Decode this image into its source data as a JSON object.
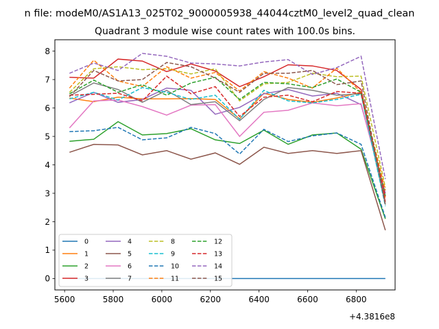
{
  "chart_data": {
    "type": "line",
    "suptitle": "n file: modeM0/AS1A13_025T02_9000005938_44044cztM0_level2_quad_clean",
    "title": "Quadrant 3 module wise count rates with 100.0s bins.",
    "xlabel": "",
    "ylabel": "",
    "x_offset_label": "+4.3816e8",
    "xlim": [
      5560,
      6960
    ],
    "ylim": [
      -0.4,
      8.4
    ],
    "x_ticks": [
      5600,
      5800,
      6000,
      6200,
      6400,
      6600,
      6800
    ],
    "y_ticks": [
      0,
      1,
      2,
      3,
      4,
      5,
      6,
      7,
      8
    ],
    "grid": false,
    "legend_position": "lower-left",
    "x": [
      5620,
      5720,
      5820,
      5920,
      6020,
      6120,
      6220,
      6320,
      6420,
      6520,
      6620,
      6720,
      6820,
      6920
    ],
    "series": [
      {
        "name": "0",
        "color": "#1f77b4",
        "dash": "solid",
        "values": [
          0,
          0,
          0,
          0,
          0,
          0,
          0,
          0,
          0,
          0,
          0,
          0,
          0,
          0
        ]
      },
      {
        "name": "1",
        "color": "#ff7f0e",
        "dash": "solid",
        "values": [
          6.35,
          6.22,
          6.38,
          6.32,
          6.32,
          6.33,
          6.3,
          5.62,
          6.52,
          6.3,
          6.2,
          6.35,
          6.55,
          2.85
        ]
      },
      {
        "name": "2",
        "color": "#2ca02c",
        "dash": "solid",
        "values": [
          4.83,
          4.9,
          5.52,
          5.05,
          5.1,
          5.27,
          4.88,
          4.75,
          5.22,
          4.72,
          5.05,
          5.12,
          4.55,
          2.1
        ]
      },
      {
        "name": "3",
        "color": "#d62728",
        "dash": "solid",
        "values": [
          7.08,
          7.05,
          7.72,
          7.65,
          7.28,
          7.55,
          7.3,
          6.75,
          7.1,
          7.52,
          7.48,
          7.32,
          6.65,
          2.7
        ]
      },
      {
        "name": "4",
        "color": "#9467bd",
        "dash": "solid",
        "values": [
          6.18,
          6.55,
          6.2,
          6.3,
          6.7,
          6.62,
          5.78,
          6.02,
          6.5,
          6.65,
          6.42,
          6.52,
          6.12,
          3.0
        ]
      },
      {
        "name": "5",
        "color": "#8c564b",
        "dash": "solid",
        "values": [
          4.44,
          4.72,
          4.7,
          4.35,
          4.5,
          4.2,
          4.42,
          4.02,
          4.62,
          4.4,
          4.5,
          4.4,
          4.5,
          1.7
        ]
      },
      {
        "name": "6",
        "color": "#e377c2",
        "dash": "solid",
        "values": [
          5.3,
          6.25,
          6.28,
          6.05,
          5.75,
          6.1,
          6.12,
          5.0,
          5.85,
          5.92,
          6.18,
          6.08,
          6.15,
          2.9
        ]
      },
      {
        "name": "7",
        "color": "#7f7f7f",
        "dash": "solid",
        "values": [
          6.42,
          6.88,
          6.65,
          6.2,
          6.62,
          6.12,
          6.22,
          5.55,
          6.3,
          6.72,
          6.62,
          6.45,
          6.5,
          2.6
        ]
      },
      {
        "name": "8",
        "color": "#bcbd22",
        "dash": "dashed",
        "values": [
          6.55,
          7.38,
          7.45,
          7.35,
          7.38,
          7.2,
          7.38,
          6.25,
          6.85,
          6.9,
          7.22,
          7.1,
          7.12,
          3.2
        ]
      },
      {
        "name": "9",
        "color": "#17becf",
        "dash": "dashed",
        "values": [
          6.32,
          6.55,
          6.28,
          6.72,
          6.55,
          6.3,
          6.45,
          5.6,
          6.62,
          6.25,
          6.18,
          6.3,
          6.48,
          2.55
        ]
      },
      {
        "name": "10",
        "color": "#1f77b4",
        "dash": "dashed",
        "values": [
          5.17,
          5.2,
          5.32,
          4.88,
          4.95,
          5.32,
          5.1,
          4.38,
          5.25,
          4.82,
          5.02,
          5.12,
          4.72,
          2.15
        ]
      },
      {
        "name": "11",
        "color": "#ff7f0e",
        "dash": "dashed",
        "values": [
          6.7,
          7.68,
          6.95,
          6.75,
          7.45,
          7.05,
          7.25,
          6.6,
          7.28,
          7.05,
          6.7,
          7.4,
          6.55,
          3.1
        ]
      },
      {
        "name": "12",
        "color": "#2ca02c",
        "dash": "dashed",
        "values": [
          6.5,
          6.98,
          6.55,
          6.82,
          6.45,
          6.88,
          7.08,
          6.3,
          6.9,
          6.85,
          6.72,
          7.02,
          6.55,
          2.9
        ]
      },
      {
        "name": "13",
        "color": "#d62728",
        "dash": "dashed",
        "values": [
          6.45,
          6.48,
          6.52,
          6.25,
          7.12,
          6.5,
          6.75,
          5.7,
          6.38,
          6.45,
          6.22,
          6.58,
          6.52,
          2.9
        ]
      },
      {
        "name": "14",
        "color": "#9467bd",
        "dash": "dashed",
        "values": [
          7.22,
          7.58,
          7.32,
          7.92,
          7.82,
          7.58,
          7.55,
          7.48,
          7.62,
          7.7,
          7.18,
          7.42,
          7.82,
          3.5
        ]
      },
      {
        "name": "15",
        "color": "#8c564b",
        "dash": "dashed",
        "values": [
          6.4,
          7.32,
          6.95,
          7.0,
          7.6,
          7.45,
          7.05,
          6.55,
          7.22,
          7.22,
          7.32,
          6.82,
          6.95,
          2.6
        ]
      }
    ]
  }
}
